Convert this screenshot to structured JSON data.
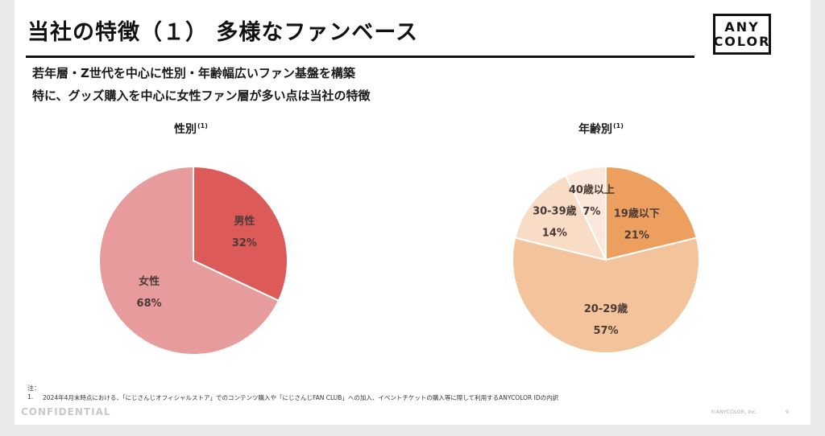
{
  "header": {
    "title": "当社の特徴（１） 多様なファンベース",
    "logo_line1": "ANY",
    "logo_line2": "COLOR"
  },
  "subtitle": {
    "line1": "若年層・Z世代を中心に性別・年齢幅広いファン基盤を構築",
    "line2": "特に、グッズ購入を中心に女性ファン層が多い点は当社の特徴"
  },
  "footnote": {
    "head": "注：",
    "num": "1.",
    "text": "2024年4月末時点における、「にじさんじオフィシャルストア」でのコンテンツ購入や「にじさんじFAN CLUB」への加入、イベントチケットの購入等に際して利用するANYCOLOR IDの内訳"
  },
  "footer": {
    "confidential": "CONFIDENTIAL",
    "copyright": "©ANYCOLOR, Inc.",
    "page": "9"
  },
  "chart_data": [
    {
      "type": "pie",
      "title": "性別",
      "title_note": "(1)",
      "unit": "%",
      "slices": [
        {
          "label": "男性",
          "value": 32,
          "color": "#dc5a58"
        },
        {
          "label": "女性",
          "value": 68,
          "color": "#e89b9c"
        }
      ]
    },
    {
      "type": "pie",
      "title": "年齢別",
      "title_note": "(1)",
      "unit": "%",
      "slices": [
        {
          "label": "19歳以下",
          "value": 21,
          "color": "#ec9f5e"
        },
        {
          "label": "20-29歳",
          "value": 57,
          "color": "#f3c39c"
        },
        {
          "label": "30-39歳",
          "value": 14,
          "color": "#f8dcc5"
        },
        {
          "label": "40歳以上",
          "value": 7,
          "color": "#fbe8da"
        }
      ]
    }
  ]
}
